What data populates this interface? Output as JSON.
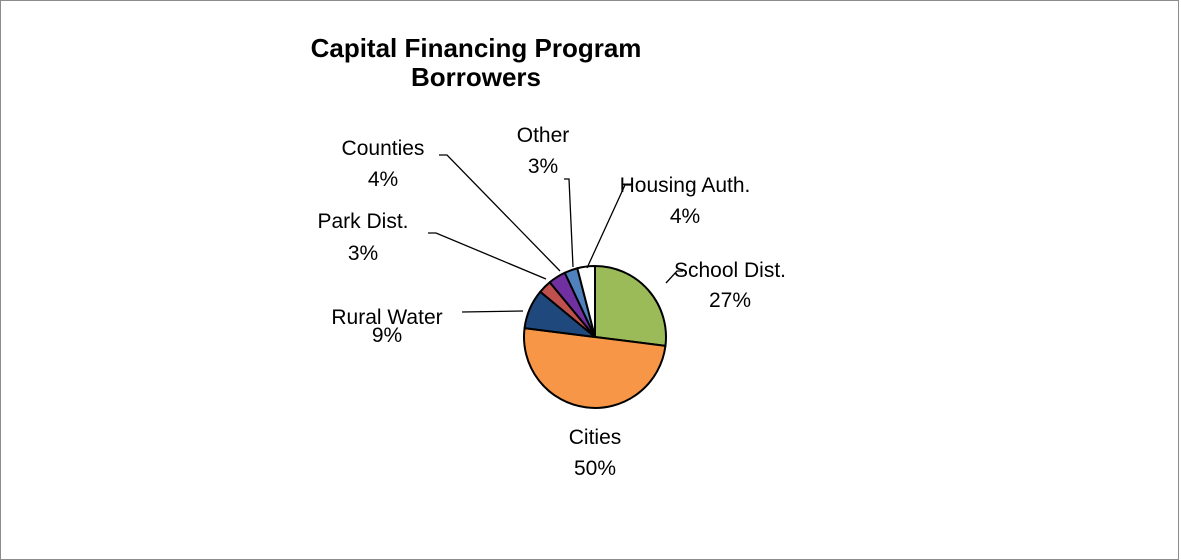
{
  "chart_data": {
    "type": "pie",
    "title": [
      "Capital Financing Program",
      "Borrowers"
    ],
    "slices": [
      {
        "name": "School Dist.",
        "value": 27,
        "label": "27%",
        "color": "#9BBB59"
      },
      {
        "name": "Cities",
        "value": 50,
        "label": "50%",
        "color": "#F79646"
      },
      {
        "name": "Rural Water",
        "value": 9,
        "label": "9%",
        "color": "#1F497D"
      },
      {
        "name": "Park Dist.",
        "value": 3,
        "label": "3%",
        "color": "#C0504D"
      },
      {
        "name": "Counties",
        "value": 4,
        "label": "4%",
        "color": "#7030A0"
      },
      {
        "name": "Other",
        "value": 3,
        "label": "3%",
        "color": "#4F81BD"
      },
      {
        "name": "Housing Auth.",
        "value": 4,
        "label": "4%",
        "color": "#FFFFFF"
      }
    ],
    "start_angle": "12 o'clock",
    "direction": "clockwise",
    "legend": "none",
    "slice_border_color": "#000000"
  }
}
